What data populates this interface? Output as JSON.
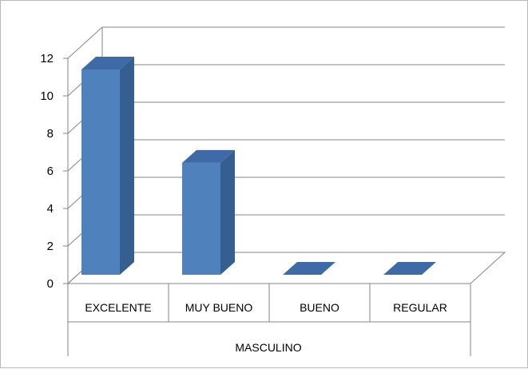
{
  "chart_data": {
    "type": "bar",
    "style": "3d-column",
    "categories": [
      "EXCELENTE",
      "MUY BUENO",
      "BUENO",
      "REGULAR"
    ],
    "group_label": "MASCULINO",
    "series": [
      {
        "values": [
          11,
          6,
          0,
          0
        ]
      }
    ],
    "yticks": [
      0,
      2,
      4,
      6,
      8,
      10,
      12
    ],
    "ylim": [
      0,
      12
    ],
    "grid": true,
    "legend": "none",
    "colors": {
      "bar_front": "#4f81bd",
      "bar_side": "#355f91",
      "bar_top": "#3e6aa8",
      "grid": "#868686"
    }
  }
}
